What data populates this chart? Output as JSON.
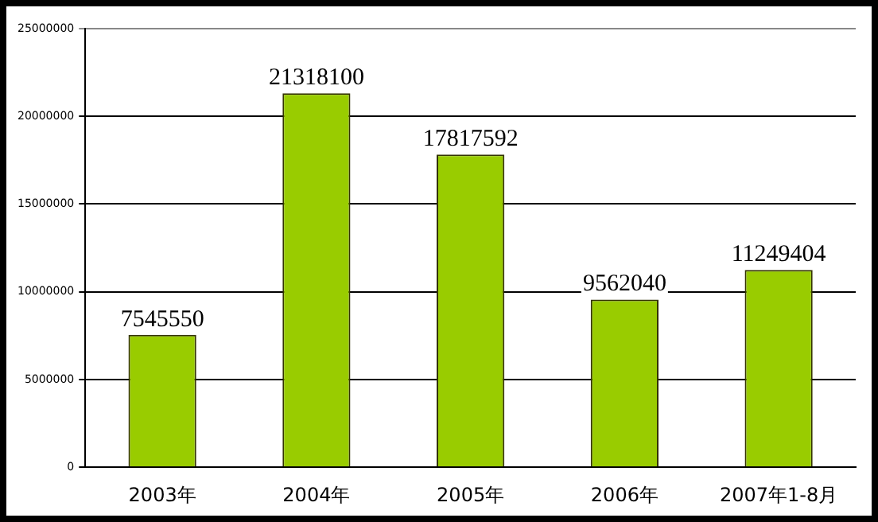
{
  "chart_data": {
    "type": "bar",
    "categories": [
      "2003年",
      "2004年",
      "2005年",
      "2006年",
      "2007年1-8月"
    ],
    "series": [
      {
        "color": "#99cc00",
        "values": [
          7545550,
          21318100,
          17817592,
          9562040,
          11249404
        ]
      }
    ],
    "ylim": [
      0,
      25000000
    ],
    "yticks": [
      0,
      5000000,
      10000000,
      15000000,
      20000000,
      25000000
    ],
    "grid": "y",
    "legend": false,
    "data_labels": true
  }
}
